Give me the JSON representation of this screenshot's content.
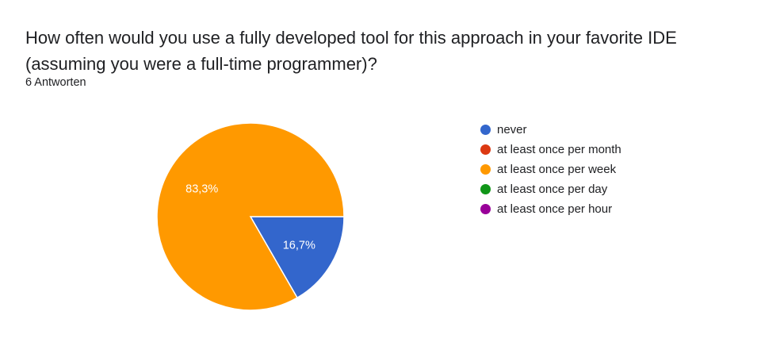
{
  "question": {
    "title": "How often would you use a fully developed tool for this approach in your favorite IDE (assuming you were a full-time programmer)?",
    "response_count": "6 Antworten"
  },
  "chart_data": {
    "type": "pie",
    "categories": [
      "never",
      "at least once per month",
      "at least once per week",
      "at least once per day",
      "at least once per hour"
    ],
    "values": [
      1,
      0,
      5,
      0,
      0
    ],
    "labels": [
      "16,7%",
      "",
      "83,3%",
      "",
      ""
    ],
    "colors": [
      "#3366cc",
      "#dc3912",
      "#ff9900",
      "#109618",
      "#990099"
    ],
    "legend_position": "right"
  }
}
